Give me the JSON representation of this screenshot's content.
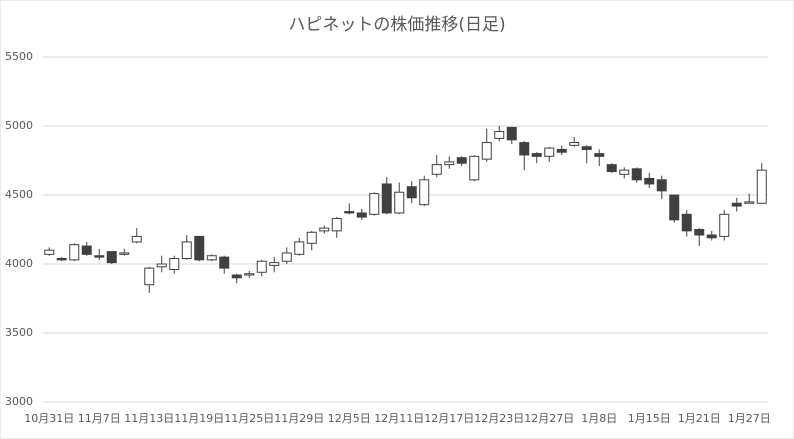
{
  "chart_data": {
    "type": "candlestick",
    "title": "ハピネットの株価推移(日足)",
    "categories": [
      "10月31日",
      null,
      null,
      null,
      "11月7日",
      null,
      null,
      null,
      "11月13日",
      null,
      null,
      null,
      "11月19日",
      null,
      null,
      null,
      "11月25日",
      null,
      null,
      null,
      "11月29日",
      null,
      null,
      null,
      "12月5日",
      null,
      null,
      null,
      "12月11日",
      null,
      null,
      null,
      "12月17日",
      null,
      null,
      null,
      "12月23日",
      null,
      null,
      null,
      "12月27日",
      null,
      null,
      null,
      "1月8日",
      null,
      null,
      null,
      "1月15日",
      null,
      null,
      null,
      "1月21日",
      null,
      null,
      null,
      "1月27日",
      null
    ],
    "open": [
      4070,
      4040,
      4030,
      4130,
      4060,
      4090,
      4070,
      4160,
      3850,
      3980,
      3960,
      4040,
      4200,
      4030,
      4050,
      3920,
      3920,
      3940,
      3990,
      4020,
      4070,
      4150,
      4240,
      4240,
      4380,
      4370,
      4360,
      4580,
      4370,
      4560,
      4430,
      4650,
      4720,
      4770,
      4610,
      4760,
      4910,
      4990,
      4880,
      4800,
      4780,
      4830,
      4860,
      4850,
      4800,
      4720,
      4650,
      4690,
      4620,
      4610,
      4500,
      4360,
      4250,
      4210,
      4200,
      4440,
      4440,
      4440
    ],
    "high": [
      4120,
      4050,
      4150,
      4160,
      4110,
      4090,
      4110,
      4260,
      3980,
      4060,
      4060,
      4210,
      4200,
      4070,
      4060,
      3930,
      3950,
      4030,
      4050,
      4120,
      4190,
      4240,
      4280,
      4340,
      4440,
      4400,
      4520,
      4630,
      4590,
      4600,
      4640,
      4790,
      4780,
      4780,
      4790,
      4980,
      5000,
      4990,
      4890,
      4810,
      4850,
      4860,
      4920,
      4860,
      4830,
      4730,
      4700,
      4700,
      4660,
      4640,
      4500,
      4390,
      4260,
      4240,
      4390,
      4480,
      4510,
      4730
    ],
    "low": [
      4060,
      4020,
      4020,
      4060,
      4030,
      4000,
      4060,
      4150,
      3790,
      3940,
      3930,
      4030,
      4020,
      4020,
      3930,
      3860,
      3900,
      3910,
      3940,
      4000,
      4060,
      4100,
      4220,
      4190,
      4360,
      4320,
      4350,
      4360,
      4360,
      4440,
      4420,
      4630,
      4690,
      4710,
      4600,
      4740,
      4890,
      4870,
      4680,
      4730,
      4740,
      4790,
      4850,
      4730,
      4710,
      4660,
      4620,
      4590,
      4550,
      4470,
      4300,
      4200,
      4130,
      4170,
      4170,
      4380,
      4440,
      4440
    ],
    "close": [
      4100,
      4030,
      4140,
      4070,
      4050,
      4010,
      4080,
      4200,
      3970,
      4000,
      4040,
      4160,
      4030,
      4060,
      3970,
      3900,
      3930,
      4020,
      4010,
      4080,
      4160,
      4230,
      4260,
      4330,
      4370,
      4340,
      4510,
      4370,
      4520,
      4480,
      4610,
      4720,
      4740,
      4730,
      4780,
      4880,
      4960,
      4900,
      4790,
      4780,
      4840,
      4810,
      4880,
      4830,
      4780,
      4670,
      4680,
      4610,
      4580,
      4530,
      4320,
      4240,
      4210,
      4190,
      4360,
      4420,
      4450,
      4680
    ],
    "up_color": "#ffffff",
    "down_color": "#404040",
    "line_color": "#404040",
    "ylim": [
      3000,
      5500
    ],
    "yticks": [
      3000,
      3500,
      4000,
      4500,
      5000,
      5500
    ],
    "grid": true
  }
}
